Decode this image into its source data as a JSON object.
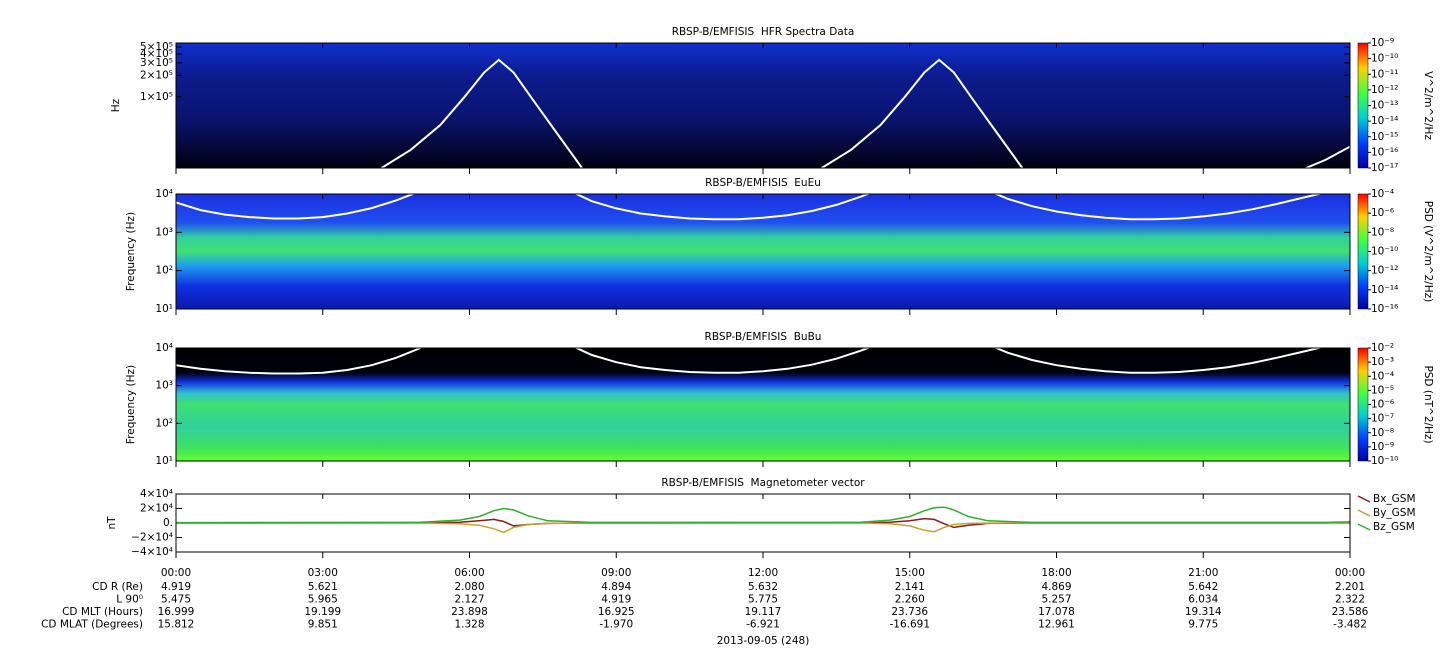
{
  "chart_data": [
    {
      "type": "spectrogram",
      "title": "RBSP-B/EMFISIS  HFR Spectra Data",
      "ylabel": "Hz",
      "ylog": true,
      "ylim": [
        10000,
        570000
      ],
      "yticks": [
        {
          "value": 500000,
          "label": "5×10⁵"
        },
        {
          "value": 400000,
          "label": "4×10⁵"
        },
        {
          "value": 300000,
          "label": "3×10⁵"
        },
        {
          "value": 200000,
          "label": "2×10⁵"
        },
        {
          "value": 100000,
          "label": "1×10⁵"
        }
      ],
      "xlim": [
        0,
        24
      ],
      "colorbar": {
        "label": "V^2/m^2/Hz",
        "log": true,
        "lim": [
          1e-17,
          1e-09
        ],
        "ticks": [
          {
            "value": 1e-09,
            "label": "10⁻⁹"
          },
          {
            "value": 1e-10,
            "label": "10⁻¹⁰"
          },
          {
            "value": 1e-11,
            "label": "10⁻¹¹"
          },
          {
            "value": 1e-12,
            "label": "10⁻¹²"
          },
          {
            "value": 1e-13,
            "label": "10⁻¹³"
          },
          {
            "value": 1e-14,
            "label": "10⁻¹⁴"
          },
          {
            "value": 1e-15,
            "label": "10⁻¹⁵"
          },
          {
            "value": 1e-16,
            "label": "10⁻¹⁶"
          },
          {
            "value": 1e-17,
            "label": "10⁻¹⁷"
          }
        ]
      },
      "series": [
        {
          "color": "#ffffff",
          "x": [
            4.2,
            4.8,
            5.4,
            5.9,
            6.3,
            6.6,
            6.9,
            7.3,
            7.8,
            8.3,
            11,
            13.2,
            13.8,
            14.4,
            14.9,
            15.3,
            15.6,
            15.9,
            16.3,
            16.8,
            17.3,
            20,
            23.1,
            23.5,
            24
          ],
          "values": [
            10000,
            18000,
            40000,
            100000,
            220000,
            330000,
            220000,
            90000,
            30000,
            10000,
            null,
            10000,
            18000,
            40000,
            100000,
            220000,
            330000,
            220000,
            90000,
            30000,
            10000,
            null,
            10000,
            13000,
            20000
          ]
        }
      ]
    },
    {
      "type": "spectrogram",
      "title": "RBSP-B/EMFISIS  EuEu",
      "ylabel": "Frequency (Hz)",
      "ylog": true,
      "ylim": [
        10,
        10000
      ],
      "yticks": [
        {
          "value": 10,
          "label": "10¹"
        },
        {
          "value": 100,
          "label": "10²"
        },
        {
          "value": 1000,
          "label": "10³"
        },
        {
          "value": 10000,
          "label": "10⁴"
        }
      ],
      "xlim": [
        0,
        24
      ],
      "colorbar": {
        "label": "PSD (V^2/m^2/Hz)",
        "log": true,
        "lim": [
          1e-16,
          0.0001
        ],
        "ticks": [
          {
            "value": 0.0001,
            "label": "10⁻⁴"
          },
          {
            "value": 1e-06,
            "label": "10⁻⁶"
          },
          {
            "value": 1e-08,
            "label": "10⁻⁸"
          },
          {
            "value": 1e-10,
            "label": "10⁻¹⁰"
          },
          {
            "value": 1e-12,
            "label": "10⁻¹²"
          },
          {
            "value": 1e-14,
            "label": "10⁻¹⁴"
          },
          {
            "value": 1e-16,
            "label": "10⁻¹⁶"
          }
        ]
      },
      "series": [
        {
          "color": "#ffffff",
          "x": [
            0,
            0.5,
            1,
            1.5,
            2,
            2.5,
            3,
            3.5,
            4,
            4.5,
            5,
            6.6,
            8,
            8.5,
            9,
            9.5,
            10,
            10.5,
            11,
            11.5,
            12,
            12.5,
            13,
            13.5,
            14,
            14.5,
            15.6,
            16.5,
            17,
            17.5,
            18,
            18.5,
            19,
            19.5,
            20,
            20.5,
            21,
            21.5,
            22,
            22.5,
            23,
            23.5,
            24
          ],
          "values": [
            6000,
            3800,
            2900,
            2500,
            2300,
            2300,
            2500,
            3100,
            4300,
            6800,
            12000,
            null,
            13000,
            6500,
            4200,
            3100,
            2600,
            2300,
            2200,
            2200,
            2400,
            2800,
            3600,
            5200,
            8500,
            15000,
            null,
            14000,
            7500,
            4800,
            3500,
            2800,
            2400,
            2200,
            2200,
            2300,
            2600,
            3100,
            4000,
            5500,
            7800,
            11000,
            16000
          ]
        }
      ]
    },
    {
      "type": "spectrogram",
      "title": "RBSP-B/EMFISIS  BuBu",
      "ylabel": "Frequency (Hz)",
      "ylog": true,
      "ylim": [
        10,
        10000
      ],
      "yticks": [
        {
          "value": 10,
          "label": "10¹"
        },
        {
          "value": 100,
          "label": "10²"
        },
        {
          "value": 1000,
          "label": "10³"
        },
        {
          "value": 10000,
          "label": "10⁴"
        }
      ],
      "xlim": [
        0,
        24
      ],
      "colorbar": {
        "label": "PSD (nT^2/Hz)",
        "log": true,
        "lim": [
          1e-10,
          0.01
        ],
        "ticks": [
          {
            "value": 0.01,
            "label": "10⁻²"
          },
          {
            "value": 0.001,
            "label": "10⁻³"
          },
          {
            "value": 0.0001,
            "label": "10⁻⁴"
          },
          {
            "value": 1e-05,
            "label": "10⁻⁵"
          },
          {
            "value": 1e-06,
            "label": "10⁻⁶"
          },
          {
            "value": 1e-07,
            "label": "10⁻⁷"
          },
          {
            "value": 1e-08,
            "label": "10⁻⁸"
          },
          {
            "value": 1e-09,
            "label": "10⁻⁹"
          },
          {
            "value": 1e-10,
            "label": "10⁻¹⁰"
          }
        ]
      },
      "series": [
        {
          "color": "#ffffff",
          "x": [
            0,
            0.5,
            1,
            1.5,
            2,
            2.5,
            3,
            3.5,
            4,
            4.5,
            5,
            6.6,
            8,
            8.5,
            9,
            9.5,
            10,
            10.5,
            11,
            11.5,
            12,
            12.5,
            13,
            13.5,
            14,
            14.5,
            15.6,
            16.5,
            17,
            17.5,
            18,
            18.5,
            19,
            19.5,
            20,
            20.5,
            21,
            21.5,
            22,
            22.5,
            23,
            23.5,
            24
          ],
          "values": [
            3500,
            2800,
            2400,
            2200,
            2100,
            2100,
            2200,
            2600,
            3500,
            5500,
            10000,
            null,
            13000,
            6500,
            4200,
            3100,
            2600,
            2300,
            2200,
            2200,
            2400,
            2800,
            3600,
            5200,
            8500,
            15000,
            null,
            14000,
            7500,
            4800,
            3500,
            2800,
            2400,
            2200,
            2200,
            2300,
            2600,
            3100,
            4000,
            5500,
            7800,
            11000,
            16000
          ]
        }
      ]
    },
    {
      "type": "line",
      "title": "RBSP-B/EMFISIS  Magnetometer vector",
      "ylabel": "nT",
      "ylog": false,
      "ylim": [
        -40000,
        40000
      ],
      "yticks": [
        {
          "value": 40000,
          "label": "4×10⁴"
        },
        {
          "value": 20000,
          "label": "2×10⁴"
        },
        {
          "value": 0,
          "label": "0."
        },
        {
          "value": -20000,
          "label": "−2×10⁴"
        },
        {
          "value": -40000,
          "label": "−4×10⁴"
        }
      ],
      "xlim": [
        0,
        24
      ],
      "xticks": [
        {
          "value": 0,
          "label": "00:00"
        },
        {
          "value": 3,
          "label": "03:00"
        },
        {
          "value": 6,
          "label": "06:00"
        },
        {
          "value": 9,
          "label": "09:00"
        },
        {
          "value": 12,
          "label": "12:00"
        },
        {
          "value": 15,
          "label": "15:00"
        },
        {
          "value": 18,
          "label": "18:00"
        },
        {
          "value": 21,
          "label": "21:00"
        },
        {
          "value": 24,
          "label": "00:00"
        }
      ],
      "x": [
        0,
        5,
        5.8,
        6.2,
        6.5,
        6.7,
        6.9,
        7.2,
        7.6,
        8.5,
        14,
        14.6,
        15,
        15.3,
        15.5,
        15.7,
        15.9,
        16.2,
        16.6,
        17.5,
        23.5,
        24
      ],
      "series": [
        {
          "name": "Bx_GSM",
          "color": "#8b1a1a",
          "values": [
            0,
            200,
            1000,
            3000,
            5000,
            2000,
            -4000,
            -2000,
            -500,
            0,
            200,
            1000,
            3000,
            6000,
            5000,
            -1000,
            -6000,
            -3000,
            -500,
            0,
            0,
            1000
          ]
        },
        {
          "name": "By_GSM",
          "color": "#c8a030",
          "values": [
            0,
            -200,
            -1000,
            -3000,
            -8000,
            -13000,
            -6000,
            -2000,
            -500,
            0,
            -200,
            -1000,
            -4000,
            -10000,
            -12000,
            -6000,
            -2000,
            -500,
            -200,
            0,
            0,
            -500
          ]
        },
        {
          "name": "Bz_GSM",
          "color": "#2fae2f",
          "values": [
            500,
            1000,
            4000,
            9000,
            17000,
            20000,
            18000,
            10000,
            3000,
            800,
            1000,
            4000,
            9000,
            17000,
            21000,
            22000,
            18000,
            9000,
            3000,
            800,
            800,
            1500
          ]
        }
      ],
      "ephemeris": [
        {
          "label": "CD R (Re)",
          "values": [
            "4.919",
            "5.621",
            "2.080",
            "4.894",
            "5.632",
            "2.141",
            "4.869",
            "5.642",
            "2.201"
          ]
        },
        {
          "label": "L 90⁰",
          "values": [
            "5.475",
            "5.965",
            "2.127",
            "4.919",
            "5.775",
            "2.260",
            "5.257",
            "6.034",
            "2.322"
          ]
        },
        {
          "label": "CD MLT (Hours)",
          "values": [
            "16.999",
            "19.199",
            "23.898",
            "16.925",
            "19.117",
            "23.736",
            "17.078",
            "19.314",
            "23.586"
          ]
        },
        {
          "label": "CD MLAT (Degrees)",
          "values": [
            "15.812",
            "9.851",
            "1.328",
            "-1.970",
            "-6.921",
            "-16.691",
            "12.961",
            "9.775",
            "-3.482"
          ]
        }
      ],
      "date": "2013-09-05 (248)"
    }
  ]
}
